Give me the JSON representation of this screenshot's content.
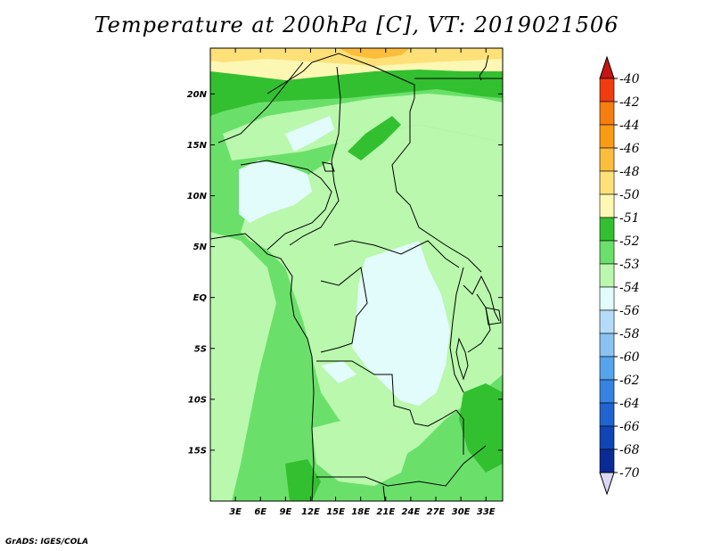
{
  "title": "Temperature at 200hPa [C], VT: 2019021506",
  "credit": "GrADS: IGES/COLA",
  "map": {
    "lon_range": [
      0,
      35
    ],
    "lat_range": [
      -20,
      24.5
    ],
    "lat_ticks": [
      {
        "value": 20,
        "label": "20N"
      },
      {
        "value": 15,
        "label": "15N"
      },
      {
        "value": 10,
        "label": "10N"
      },
      {
        "value": 5,
        "label": "5N"
      },
      {
        "value": 0,
        "label": "EQ"
      },
      {
        "value": -5,
        "label": "5S"
      },
      {
        "value": -10,
        "label": "10S"
      },
      {
        "value": -15,
        "label": "15S"
      }
    ],
    "lon_ticks": [
      {
        "value": 3,
        "label": "3E"
      },
      {
        "value": 6,
        "label": "6E"
      },
      {
        "value": 9,
        "label": "9E"
      },
      {
        "value": 12,
        "label": "12E"
      },
      {
        "value": 15,
        "label": "15E"
      },
      {
        "value": 18,
        "label": "18E"
      },
      {
        "value": 21,
        "label": "21E"
      },
      {
        "value": 24,
        "label": "24E"
      },
      {
        "value": 27,
        "label": "27E"
      },
      {
        "value": 30,
        "label": "30E"
      },
      {
        "value": 33,
        "label": "33E"
      }
    ]
  },
  "colorbar": {
    "items": [
      {
        "label": "-40",
        "color": "#e61e1e"
      },
      {
        "label": "-42",
        "color": "#f03c0f"
      },
      {
        "label": "-44",
        "color": "#f77d0e"
      },
      {
        "label": "-46",
        "color": "#fa9b16"
      },
      {
        "label": "-48",
        "color": "#fcbd3c"
      },
      {
        "label": "-50",
        "color": "#fde178"
      },
      {
        "label": "-51",
        "color": "#fdf7b4"
      },
      {
        "label": "-52",
        "color": "#33c030"
      },
      {
        "label": "-53",
        "color": "#6ae06a"
      },
      {
        "label": "-54",
        "color": "#b9f8ad"
      },
      {
        "label": "-56",
        "color": "#e2fbfb"
      },
      {
        "label": "-58",
        "color": "#b4dcf8"
      },
      {
        "label": "-60",
        "color": "#8ac2f2"
      },
      {
        "label": "-62",
        "color": "#55a4ec"
      },
      {
        "label": "-64",
        "color": "#3583e2"
      },
      {
        "label": "-66",
        "color": "#2064d2"
      },
      {
        "label": "-68",
        "color": "#0f45b4"
      },
      {
        "label": "-70",
        "color": "#0a2a96"
      }
    ],
    "under_color": "#dcd8f2",
    "over_color": "#c81414",
    "bottom_color": "#0a0a64"
  }
}
